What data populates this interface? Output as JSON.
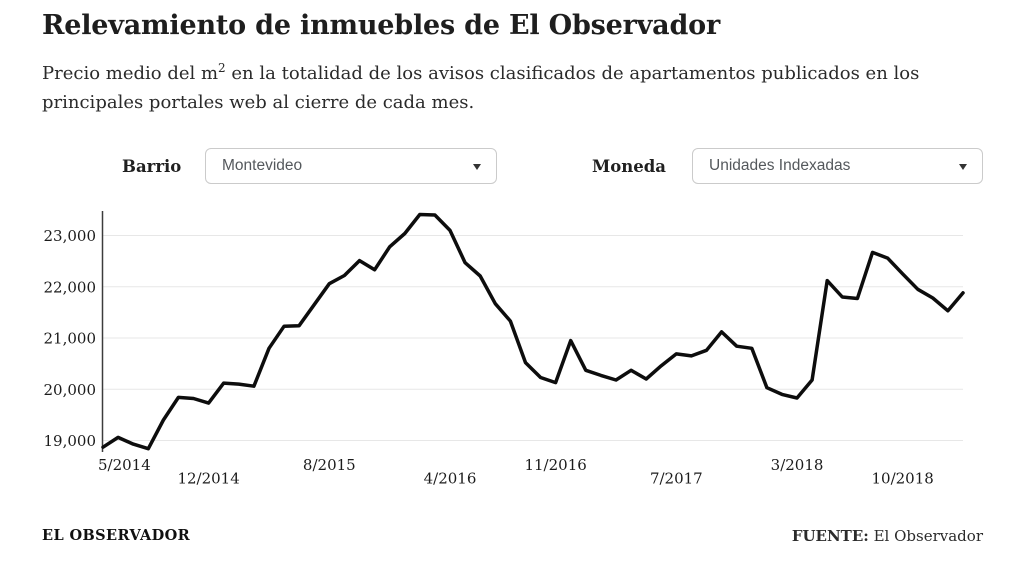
{
  "header": {
    "title": "Relevamiento de inmuebles de El Observador",
    "subtitle_prefix": "Precio medio del m",
    "subtitle_sup": "2",
    "subtitle_rest": " en la totalidad de los avisos clasificados de apartamentos publicados en los principales portales web al cierre de cada mes."
  },
  "controls": {
    "barrio": {
      "label": "Barrio",
      "value": "Montevideo"
    },
    "moneda": {
      "label": "Moneda",
      "value": "Unidades Indexadas"
    }
  },
  "chart_data": {
    "type": "line",
    "title": "",
    "xlabel": "",
    "ylabel": "",
    "legend": "none",
    "grid": true,
    "line_color": "#0d0d0d",
    "grid_color": "#e7e7e7",
    "axis_color": "#3c3c3c",
    "tick_text_color": "#1b1b1b",
    "ylim": [
      18700,
      23550
    ],
    "x": [
      "5/2014",
      "6/2014",
      "7/2014",
      "8/2014",
      "9/2014",
      "10/2014",
      "11/2014",
      "12/2014",
      "1/2015",
      "2/2015",
      "3/2015",
      "4/2015",
      "5/2015",
      "6/2015",
      "7/2015",
      "8/2015",
      "9/2015",
      "10/2015",
      "11/2015",
      "12/2015",
      "1/2016",
      "2/2016",
      "3/2016",
      "4/2016",
      "5/2016",
      "6/2016",
      "7/2016",
      "8/2016",
      "9/2016",
      "10/2016",
      "11/2016",
      "12/2016",
      "1/2017",
      "2/2017",
      "3/2017",
      "4/2017",
      "5/2017",
      "6/2017",
      "7/2017",
      "8/2017",
      "9/2017",
      "10/2017",
      "11/2017",
      "12/2017",
      "1/2018",
      "2/2018",
      "3/2018",
      "4/2018",
      "5/2018",
      "6/2018",
      "7/2018",
      "8/2018",
      "9/2018",
      "10/2018",
      "11/2018",
      "12/2018",
      "1/2019",
      "2/2019"
    ],
    "values": [
      18870,
      19060,
      18930,
      18840,
      19400,
      19840,
      19820,
      19730,
      20120,
      20100,
      20060,
      20800,
      21230,
      21240,
      21650,
      22060,
      22220,
      22510,
      22330,
      22780,
      23040,
      23410,
      23400,
      23100,
      22470,
      22210,
      21670,
      21330,
      20520,
      20230,
      20130,
      20950,
      20370,
      20270,
      20180,
      20370,
      20200,
      20460,
      20690,
      20650,
      20760,
      21120,
      20840,
      20800,
      20030,
      19900,
      19830,
      20180,
      22120,
      21800,
      21770,
      22670,
      22560,
      22250,
      21950,
      21780,
      21530,
      21880
    ],
    "y_ticks": [
      {
        "v": 19000,
        "label": "19,000"
      },
      {
        "v": 20000,
        "label": "20,000"
      },
      {
        "v": 21000,
        "label": "21,000"
      },
      {
        "v": 22000,
        "label": "22,000"
      },
      {
        "v": 23000,
        "label": "23,000"
      }
    ],
    "x_tick_indices": [
      0,
      7,
      15,
      23,
      30,
      38,
      46,
      53
    ],
    "x_tick_labels": [
      "5/2014",
      "12/2014",
      "8/2015",
      "4/2016",
      "11/2016",
      "7/2017",
      "3/2018",
      "10/2018"
    ]
  },
  "footer": {
    "brand": "EL OBSERVADOR",
    "source_label": "FUENTE:",
    "source_value": "El Observador"
  }
}
